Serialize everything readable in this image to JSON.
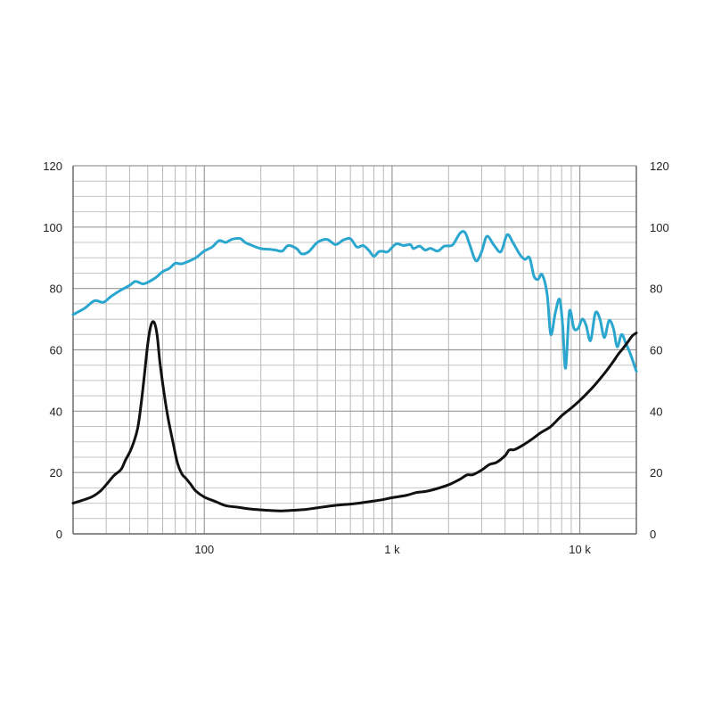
{
  "chart_data": {
    "type": "line",
    "title": "",
    "xlabel": "",
    "ylabel_left": "",
    "ylabel_right": "",
    "x_scale": "log",
    "xlim": [
      20,
      20000
    ],
    "ylim": [
      0,
      120
    ],
    "y2lim": [
      0,
      120
    ],
    "grid": true,
    "legend": "none",
    "x_tick_labels": [
      {
        "value": 100,
        "label": "100"
      },
      {
        "value": 1000,
        "label": "1 k"
      },
      {
        "value": 10000,
        "label": "10 k"
      }
    ],
    "y_ticks": [
      0,
      20,
      40,
      60,
      80,
      100,
      120
    ],
    "y2_ticks": [
      0,
      20,
      40,
      60,
      80,
      100,
      120
    ],
    "series": [
      {
        "color": "#2aa6cf",
        "axis": "left",
        "points": [
          [
            20,
            71.5
          ],
          [
            23,
            73.5
          ],
          [
            26,
            76
          ],
          [
            29,
            75.5
          ],
          [
            32,
            77.5
          ],
          [
            36,
            79.5
          ],
          [
            40,
            81
          ],
          [
            43,
            82.3
          ],
          [
            47,
            81.5
          ],
          [
            50,
            82
          ],
          [
            55,
            83.5
          ],
          [
            60,
            85.5
          ],
          [
            65,
            86.5
          ],
          [
            70,
            88.2
          ],
          [
            75,
            88
          ],
          [
            80,
            88.5
          ],
          [
            90,
            90
          ],
          [
            100,
            92.2
          ],
          [
            110,
            93.5
          ],
          [
            120,
            95.6
          ],
          [
            130,
            95
          ],
          [
            140,
            96
          ],
          [
            155,
            96.3
          ],
          [
            165,
            95
          ],
          [
            180,
            94
          ],
          [
            200,
            93
          ],
          [
            220,
            92.8
          ],
          [
            240,
            92.5
          ],
          [
            260,
            92.2
          ],
          [
            280,
            94
          ],
          [
            310,
            93
          ],
          [
            330,
            91.3
          ],
          [
            360,
            92
          ],
          [
            400,
            95
          ],
          [
            450,
            96
          ],
          [
            500,
            94.3
          ],
          [
            550,
            95.8
          ],
          [
            600,
            96.2
          ],
          [
            650,
            93.5
          ],
          [
            700,
            94
          ],
          [
            750,
            92.5
          ],
          [
            800,
            90.5
          ],
          [
            850,
            92
          ],
          [
            900,
            92.1
          ],
          [
            950,
            92
          ],
          [
            1050,
            94.5
          ],
          [
            1150,
            94
          ],
          [
            1250,
            94.3
          ],
          [
            1300,
            93
          ],
          [
            1400,
            93.8
          ],
          [
            1500,
            92.5
          ],
          [
            1600,
            93.1
          ],
          [
            1750,
            92.2
          ],
          [
            1900,
            93.8
          ],
          [
            2100,
            94.2
          ],
          [
            2300,
            98
          ],
          [
            2450,
            98.2
          ],
          [
            2600,
            94
          ],
          [
            2800,
            89
          ],
          [
            3000,
            92
          ],
          [
            3200,
            97
          ],
          [
            3500,
            94
          ],
          [
            3800,
            92
          ],
          [
            4100,
            97.5
          ],
          [
            4400,
            95
          ],
          [
            4800,
            91
          ],
          [
            5100,
            89.5
          ],
          [
            5400,
            90
          ],
          [
            5700,
            84
          ],
          [
            6000,
            83
          ],
          [
            6300,
            84.5
          ],
          [
            6700,
            78
          ],
          [
            7000,
            65
          ],
          [
            7400,
            72
          ],
          [
            7800,
            76.5
          ],
          [
            8100,
            68
          ],
          [
            8400,
            54
          ],
          [
            8800,
            72.5
          ],
          [
            9300,
            67
          ],
          [
            9800,
            67
          ],
          [
            10300,
            70
          ],
          [
            10800,
            68
          ],
          [
            11400,
            63
          ],
          [
            12100,
            72
          ],
          [
            12800,
            70
          ],
          [
            13500,
            64
          ],
          [
            14300,
            69.5
          ],
          [
            15100,
            67
          ],
          [
            15800,
            61
          ],
          [
            16700,
            65
          ],
          [
            17600,
            62
          ],
          [
            18500,
            59
          ],
          [
            20000,
            53
          ]
        ]
      },
      {
        "color": "#111111",
        "axis": "right",
        "points": [
          [
            20,
            10
          ],
          [
            25,
            12
          ],
          [
            28,
            14
          ],
          [
            30,
            16
          ],
          [
            33,
            19
          ],
          [
            36,
            21
          ],
          [
            38,
            24
          ],
          [
            41,
            28
          ],
          [
            44,
            34
          ],
          [
            46,
            42
          ],
          [
            48,
            52
          ],
          [
            50,
            62
          ],
          [
            52,
            68
          ],
          [
            54,
            69
          ],
          [
            56,
            65
          ],
          [
            58,
            56
          ],
          [
            61,
            46
          ],
          [
            64,
            38
          ],
          [
            68,
            30
          ],
          [
            72,
            23
          ],
          [
            76,
            19.5
          ],
          [
            80,
            18
          ],
          [
            85,
            16
          ],
          [
            90,
            14
          ],
          [
            100,
            12
          ],
          [
            115,
            10.5
          ],
          [
            130,
            9.2
          ],
          [
            150,
            8.7
          ],
          [
            170,
            8.2
          ],
          [
            200,
            7.8
          ],
          [
            230,
            7.6
          ],
          [
            260,
            7.5
          ],
          [
            300,
            7.7
          ],
          [
            350,
            8
          ],
          [
            400,
            8.5
          ],
          [
            500,
            9.3
          ],
          [
            600,
            9.7
          ],
          [
            700,
            10.2
          ],
          [
            800,
            10.7
          ],
          [
            900,
            11.2
          ],
          [
            1000,
            11.8
          ],
          [
            1200,
            12.6
          ],
          [
            1350,
            13.5
          ],
          [
            1500,
            13.8
          ],
          [
            1700,
            14.6
          ],
          [
            2000,
            16
          ],
          [
            2300,
            17.8
          ],
          [
            2500,
            19.2
          ],
          [
            2700,
            19.3
          ],
          [
            3000,
            20.8
          ],
          [
            3300,
            22.6
          ],
          [
            3600,
            23.3
          ],
          [
            4000,
            25.5
          ],
          [
            4200,
            27.3
          ],
          [
            4500,
            27.5
          ],
          [
            5000,
            29
          ],
          [
            5600,
            31
          ],
          [
            6200,
            33
          ],
          [
            7000,
            35
          ],
          [
            8000,
            38.5
          ],
          [
            9000,
            41
          ],
          [
            10000,
            43.5
          ],
          [
            11000,
            46
          ],
          [
            12000,
            48.5
          ],
          [
            13000,
            51
          ],
          [
            14000,
            53.5
          ],
          [
            15000,
            56
          ],
          [
            16000,
            58.5
          ],
          [
            17000,
            60.5
          ],
          [
            18000,
            62.5
          ],
          [
            19000,
            64.5
          ],
          [
            20000,
            65.5
          ]
        ]
      }
    ]
  }
}
